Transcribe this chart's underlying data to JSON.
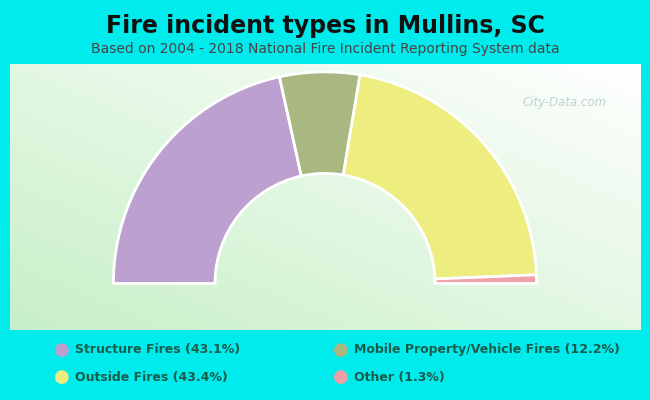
{
  "title": "Fire incident types in Mullins, SC",
  "subtitle": "Based on 2004 - 2018 National Fire Incident Reporting System data",
  "bg_color": "#00ECEC",
  "segments_ordered": [
    {
      "label": "Structure Fires (43.1%)",
      "value": 43.1,
      "color": "#BBA0D0"
    },
    {
      "label": "Mobile Property/Vehicle Fires (12.2%)",
      "value": 12.2,
      "color": "#A8B880"
    },
    {
      "label": "Outside Fires (43.4%)",
      "value": 43.4,
      "color": "#EEED80"
    },
    {
      "label": "Other (1.3%)",
      "value": 1.3,
      "color": "#F0A0A8"
    }
  ],
  "legend": [
    {
      "label": "Structure Fires (43.1%)",
      "color": "#BBA0D0"
    },
    {
      "label": "Outside Fires (43.4%)",
      "color": "#EEED80"
    },
    {
      "label": "Mobile Property/Vehicle Fires (12.2%)",
      "color": "#A8B880"
    },
    {
      "label": "Other (1.3%)",
      "color": "#F0A0A8"
    }
  ],
  "outer_r": 1.0,
  "inner_r": 0.52,
  "title_fontsize": 17,
  "subtitle_fontsize": 10,
  "legend_fontsize": 9,
  "text_color": "#1a5c4a",
  "title_color": "#111111",
  "watermark": "City-Data.com"
}
